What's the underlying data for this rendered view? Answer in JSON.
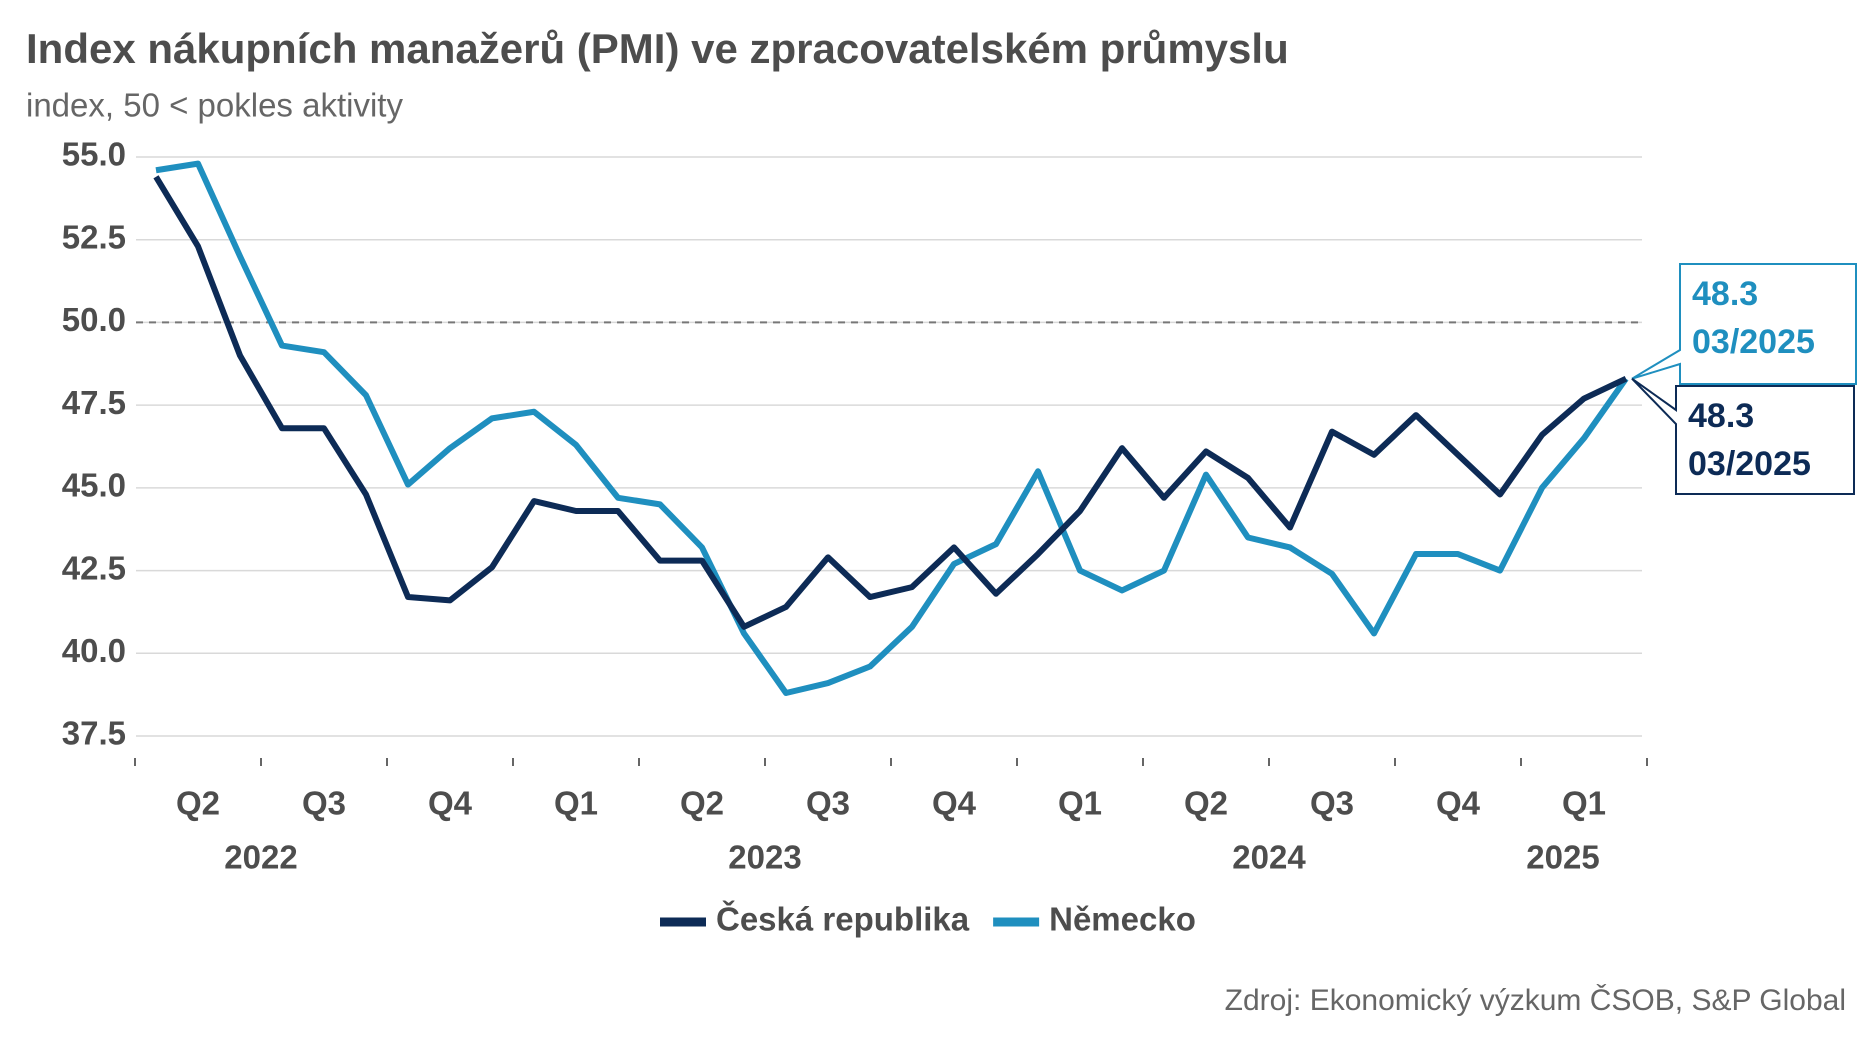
{
  "chart_data": {
    "type": "line",
    "title": "Index nákupních manažerů (PMI) ve zpracovatelském průmyslu",
    "subtitle": "index, 50 < pokles aktivity",
    "source": "Zdroj: Ekonomický výzkum ČSOB, S&P Global",
    "categories": [
      null,
      "Q2",
      null,
      null,
      "Q3",
      null,
      null,
      "Q4",
      null,
      null,
      "Q1",
      null,
      null,
      "Q2",
      null,
      null,
      "Q3",
      null,
      null,
      "Q4",
      null,
      null,
      "Q1",
      null,
      null,
      "Q2",
      null,
      null,
      "Q3",
      null,
      null,
      "Q4",
      null,
      null,
      "Q1",
      null
    ],
    "year_labels": [
      null,
      null,
      "2022",
      null,
      null,
      null,
      null,
      null,
      null,
      null,
      null,
      null,
      null,
      null,
      "2023",
      null,
      null,
      null,
      null,
      null,
      null,
      null,
      null,
      null,
      null,
      null,
      "2024",
      null,
      null,
      null,
      null,
      null,
      null,
      "2025",
      null,
      null
    ],
    "series": [
      {
        "name": "Česká republika",
        "color": "#0d2b56",
        "end_label": "03/2025",
        "values": [
          54.4,
          52.3,
          49.0,
          46.8,
          46.8,
          44.8,
          41.7,
          41.6,
          42.6,
          44.6,
          44.3,
          44.3,
          42.8,
          42.8,
          40.8,
          41.4,
          42.9,
          41.7,
          42.0,
          43.2,
          41.8,
          43.0,
          44.3,
          46.2,
          44.7,
          46.1,
          45.3,
          43.8,
          46.7,
          46.0,
          47.2,
          46.0,
          44.8,
          46.6,
          47.7,
          48.3
        ]
      },
      {
        "name": "Německo",
        "color": "#1f8fbf",
        "end_label": "03/2025",
        "values": [
          54.6,
          54.8,
          52.0,
          49.3,
          49.1,
          47.8,
          45.1,
          46.2,
          47.1,
          47.3,
          46.3,
          44.7,
          44.5,
          43.2,
          40.6,
          38.8,
          39.1,
          39.6,
          40.8,
          42.7,
          43.3,
          45.5,
          42.5,
          41.9,
          42.5,
          45.4,
          43.5,
          43.2,
          42.4,
          40.6,
          43.0,
          43.0,
          42.5,
          45.0,
          46.5,
          48.3
        ]
      }
    ],
    "ylim": [
      37.5,
      55
    ],
    "yticks": [
      {
        "value": 37.5,
        "label": "37.5"
      },
      {
        "value": 40,
        "label": "40.0"
      },
      {
        "value": 42.5,
        "label": "42.5"
      },
      {
        "value": 45,
        "label": "45.0"
      },
      {
        "value": 47.5,
        "label": "47.5"
      },
      {
        "value": 50,
        "label": "50.0"
      },
      {
        "value": 52.5,
        "label": "52.5"
      },
      {
        "value": 55,
        "label": "55.0"
      }
    ],
    "reference_line": 50,
    "grid": true,
    "legend": "bottom"
  }
}
